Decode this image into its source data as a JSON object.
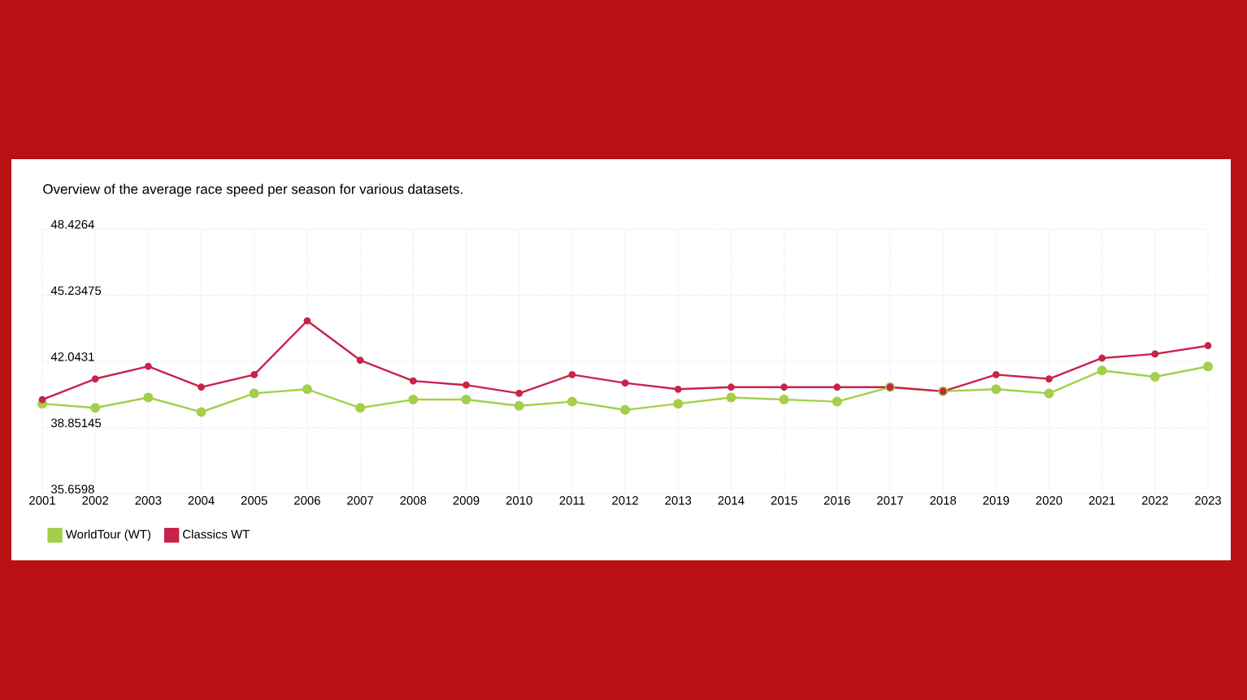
{
  "chart_data": {
    "type": "line",
    "title": "Overview of the average race speed per season for various datasets.",
    "x": [
      2001,
      2002,
      2003,
      2004,
      2005,
      2006,
      2007,
      2008,
      2009,
      2010,
      2011,
      2012,
      2013,
      2014,
      2015,
      2016,
      2017,
      2018,
      2019,
      2020,
      2021,
      2022,
      2023
    ],
    "series": [
      {
        "name": "WorldTour (WT)",
        "color": "#a3cf4a",
        "values": [
          40.0,
          39.8,
          40.3,
          39.6,
          40.5,
          40.7,
          39.8,
          40.2,
          40.2,
          39.9,
          40.1,
          39.7,
          40.0,
          40.3,
          40.2,
          40.1,
          40.8,
          40.6,
          40.7,
          40.5,
          41.6,
          41.3,
          41.8
        ]
      },
      {
        "name": "Classics WT",
        "color": "#c8234a",
        "values": [
          40.2,
          41.2,
          41.8,
          40.8,
          41.4,
          44.0,
          42.1,
          41.1,
          40.9,
          40.5,
          41.4,
          41.0,
          40.7,
          40.8,
          40.8,
          40.8,
          40.8,
          40.6,
          41.4,
          41.2,
          42.2,
          42.4,
          42.8
        ]
      }
    ],
    "xlim": [
      2001,
      2023
    ],
    "xticks": [
      2001,
      2002,
      2003,
      2004,
      2005,
      2006,
      2007,
      2008,
      2009,
      2010,
      2011,
      2012,
      2013,
      2014,
      2015,
      2016,
      2017,
      2018,
      2019,
      2020,
      2021,
      2022,
      2023
    ],
    "ylim": [
      35.6598,
      48.4264
    ],
    "yticks": [
      35.6598,
      38.85145,
      42.0431,
      45.23475,
      48.4264
    ],
    "grid": true,
    "legend": "bottom left",
    "marker": "circle",
    "line_style": "solid"
  }
}
